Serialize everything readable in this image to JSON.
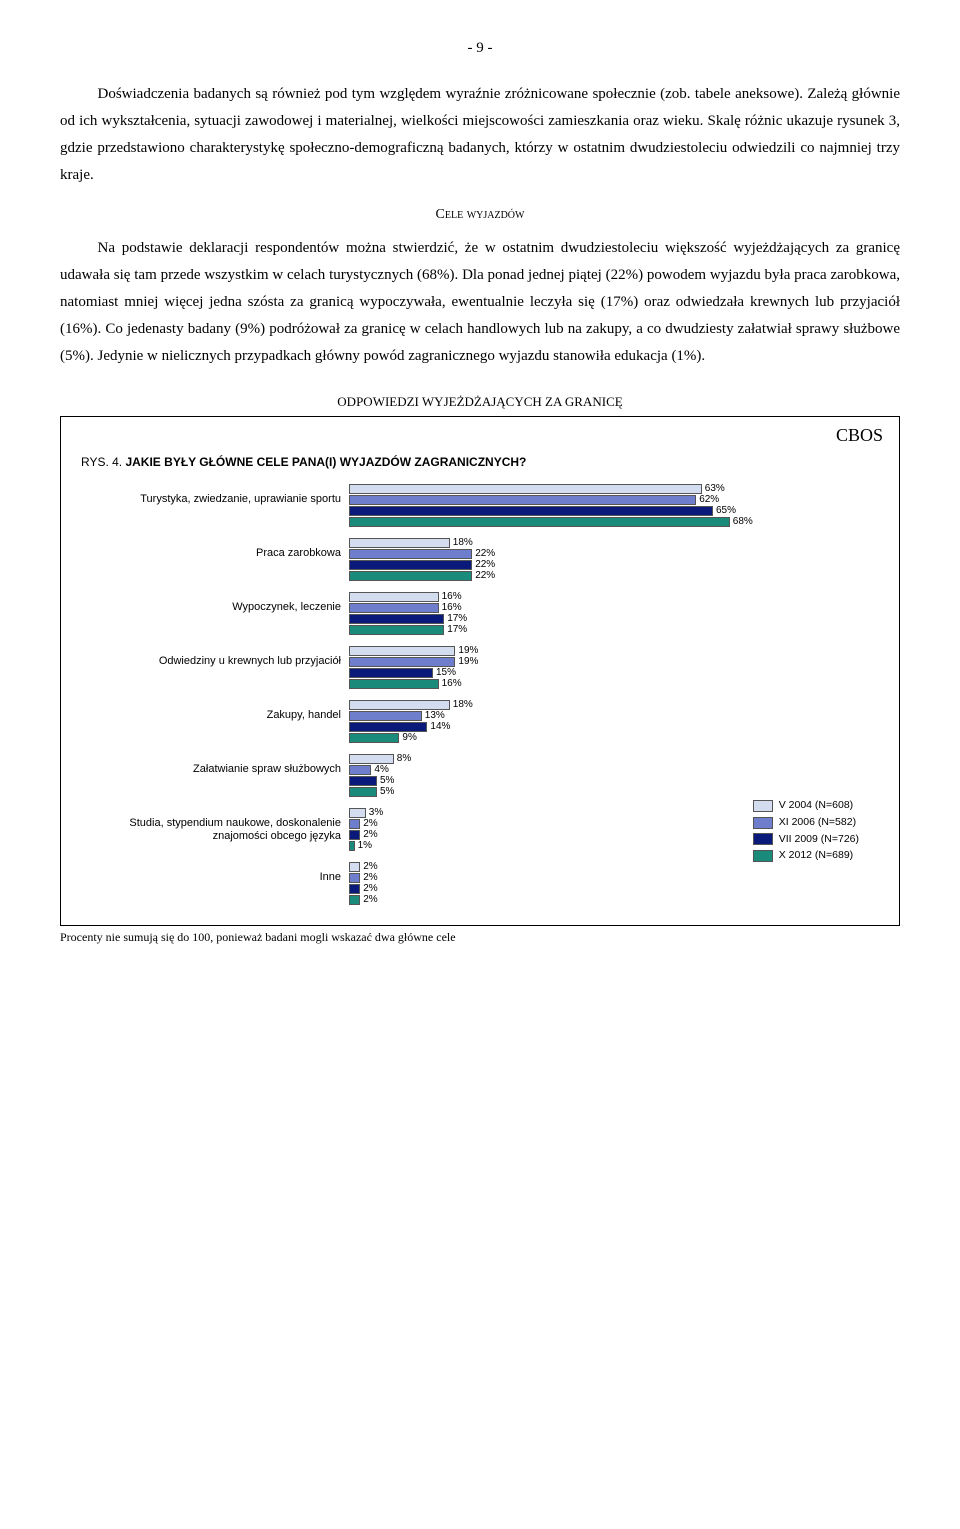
{
  "page_number": "- 9 -",
  "para1": "Doświadczenia badanych są również pod tym względem wyraźnie zróżnicowane społecznie (zob. tabele aneksowe). Zależą głównie od ich wykształcenia, sytuacji zawodowej i materialnej, wielkości miejscowości zamieszkania oraz wieku. Skalę różnic ukazuje rysunek 3, gdzie przedstawiono charakterystykę społeczno-demograficzną badanych, którzy w ostatnim dwudziestoleciu odwiedzili co najmniej trzy kraje.",
  "section_heading": "Cele wyjazdów",
  "para2": "Na podstawie deklaracji respondentów można stwierdzić, że w ostatnim dwudziestoleciu większość wyjeżdżających za granicę udawała się tam przede wszystkim w celach turystycznych (68%). Dla ponad jednej piątej (22%) powodem wyjazdu była praca zarobkowa, natomiast mniej więcej jedna szósta za granicą wypoczywała, ewentualnie leczyła się (17%) oraz odwiedzała krewnych lub przyjaciół (16%). Co jedenasty badany (9%) podróżował za granicę w celach handlowych lub na zakupy, a co dwudziesty załatwiał sprawy służbowe (5%). Jedynie w nielicznych przypadkach główny powód zagranicznego wyjazdu stanowiła edukacja (1%).",
  "table_caption": "ODPOWIEDZI WYJEŻDŻAJĄCYCH ZA GRANICĘ",
  "cbos": "CBOS",
  "chart_prefix": "RYS. 4. ",
  "chart_title": "JAKIE BYŁY GŁÓWNE CELE PANA(I) WYJAZDÓW ZAGRANICZNYCH?",
  "chart": {
    "colors": [
      "#d4dcf0",
      "#6e7ecc",
      "#0a1a7a",
      "#1a8a7a"
    ],
    "max": 75,
    "categories": [
      {
        "label": "Turystyka, zwiedzanie, uprawianie sportu",
        "values": [
          63,
          62,
          65,
          68
        ]
      },
      {
        "label": "Praca zarobkowa",
        "values": [
          18,
          22,
          22,
          22
        ]
      },
      {
        "label": "Wypoczynek, leczenie",
        "values": [
          16,
          16,
          17,
          17
        ]
      },
      {
        "label": "Odwiedziny u krewnych lub przyjaciół",
        "values": [
          19,
          19,
          15,
          16
        ]
      },
      {
        "label": "Zakupy, handel",
        "values": [
          18,
          13,
          14,
          9
        ]
      },
      {
        "label": "Załatwianie spraw służbowych",
        "values": [
          8,
          4,
          5,
          5
        ]
      },
      {
        "label": "Studia, stypendium naukowe, doskonalenie znajomości obcego języka",
        "values": [
          3,
          2,
          2,
          1
        ]
      },
      {
        "label": "Inne",
        "values": [
          2,
          2,
          2,
          2
        ]
      }
    ],
    "legend": [
      "V 2004 (N=608)",
      "XI 2006 (N=582)",
      "VII 2009 (N=726)",
      "X 2012 (N=689)"
    ]
  },
  "footnote": "Procenty nie sumują się do 100, ponieważ badani mogli wskazać dwa główne cele"
}
